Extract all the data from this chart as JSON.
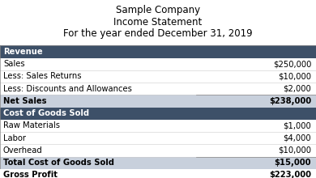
{
  "title1": "Sample Company",
  "title2": "Income Statement",
  "title3": "For the year ended December 31, 2019",
  "header_bg": "#3d5068",
  "subheader_bg": "#c8d0dc",
  "white_bg": "#ffffff",
  "gross_profit_bg": "#b0bac8",
  "rows": [
    {
      "label": "Revenue",
      "value": "",
      "style": "header"
    },
    {
      "label": "Sales",
      "value": "$250,000",
      "style": "normal"
    },
    {
      "label": "Less: Sales Returns",
      "value": "$10,000",
      "style": "normal"
    },
    {
      "label": "Less: Discounts and Allowances",
      "value": "$2,000",
      "style": "normal"
    },
    {
      "label": "Net Sales",
      "value": "$238,000",
      "style": "subheader"
    },
    {
      "label": "Cost of Goods Sold",
      "value": "",
      "style": "header"
    },
    {
      "label": "Raw Materials",
      "value": "$1,000",
      "style": "normal"
    },
    {
      "label": "Labor",
      "value": "$4,000",
      "style": "normal"
    },
    {
      "label": "Overhead",
      "value": "$10,000",
      "style": "normal"
    },
    {
      "label": "Total Cost of Goods Sold",
      "value": "$15,000",
      "style": "subheader"
    },
    {
      "label": "Gross Profit",
      "value": "$223,000",
      "style": "gross_profit"
    }
  ],
  "title_fontsize": 8.5,
  "row_fontsize": 7.2,
  "fig_bg": "#ffffff"
}
